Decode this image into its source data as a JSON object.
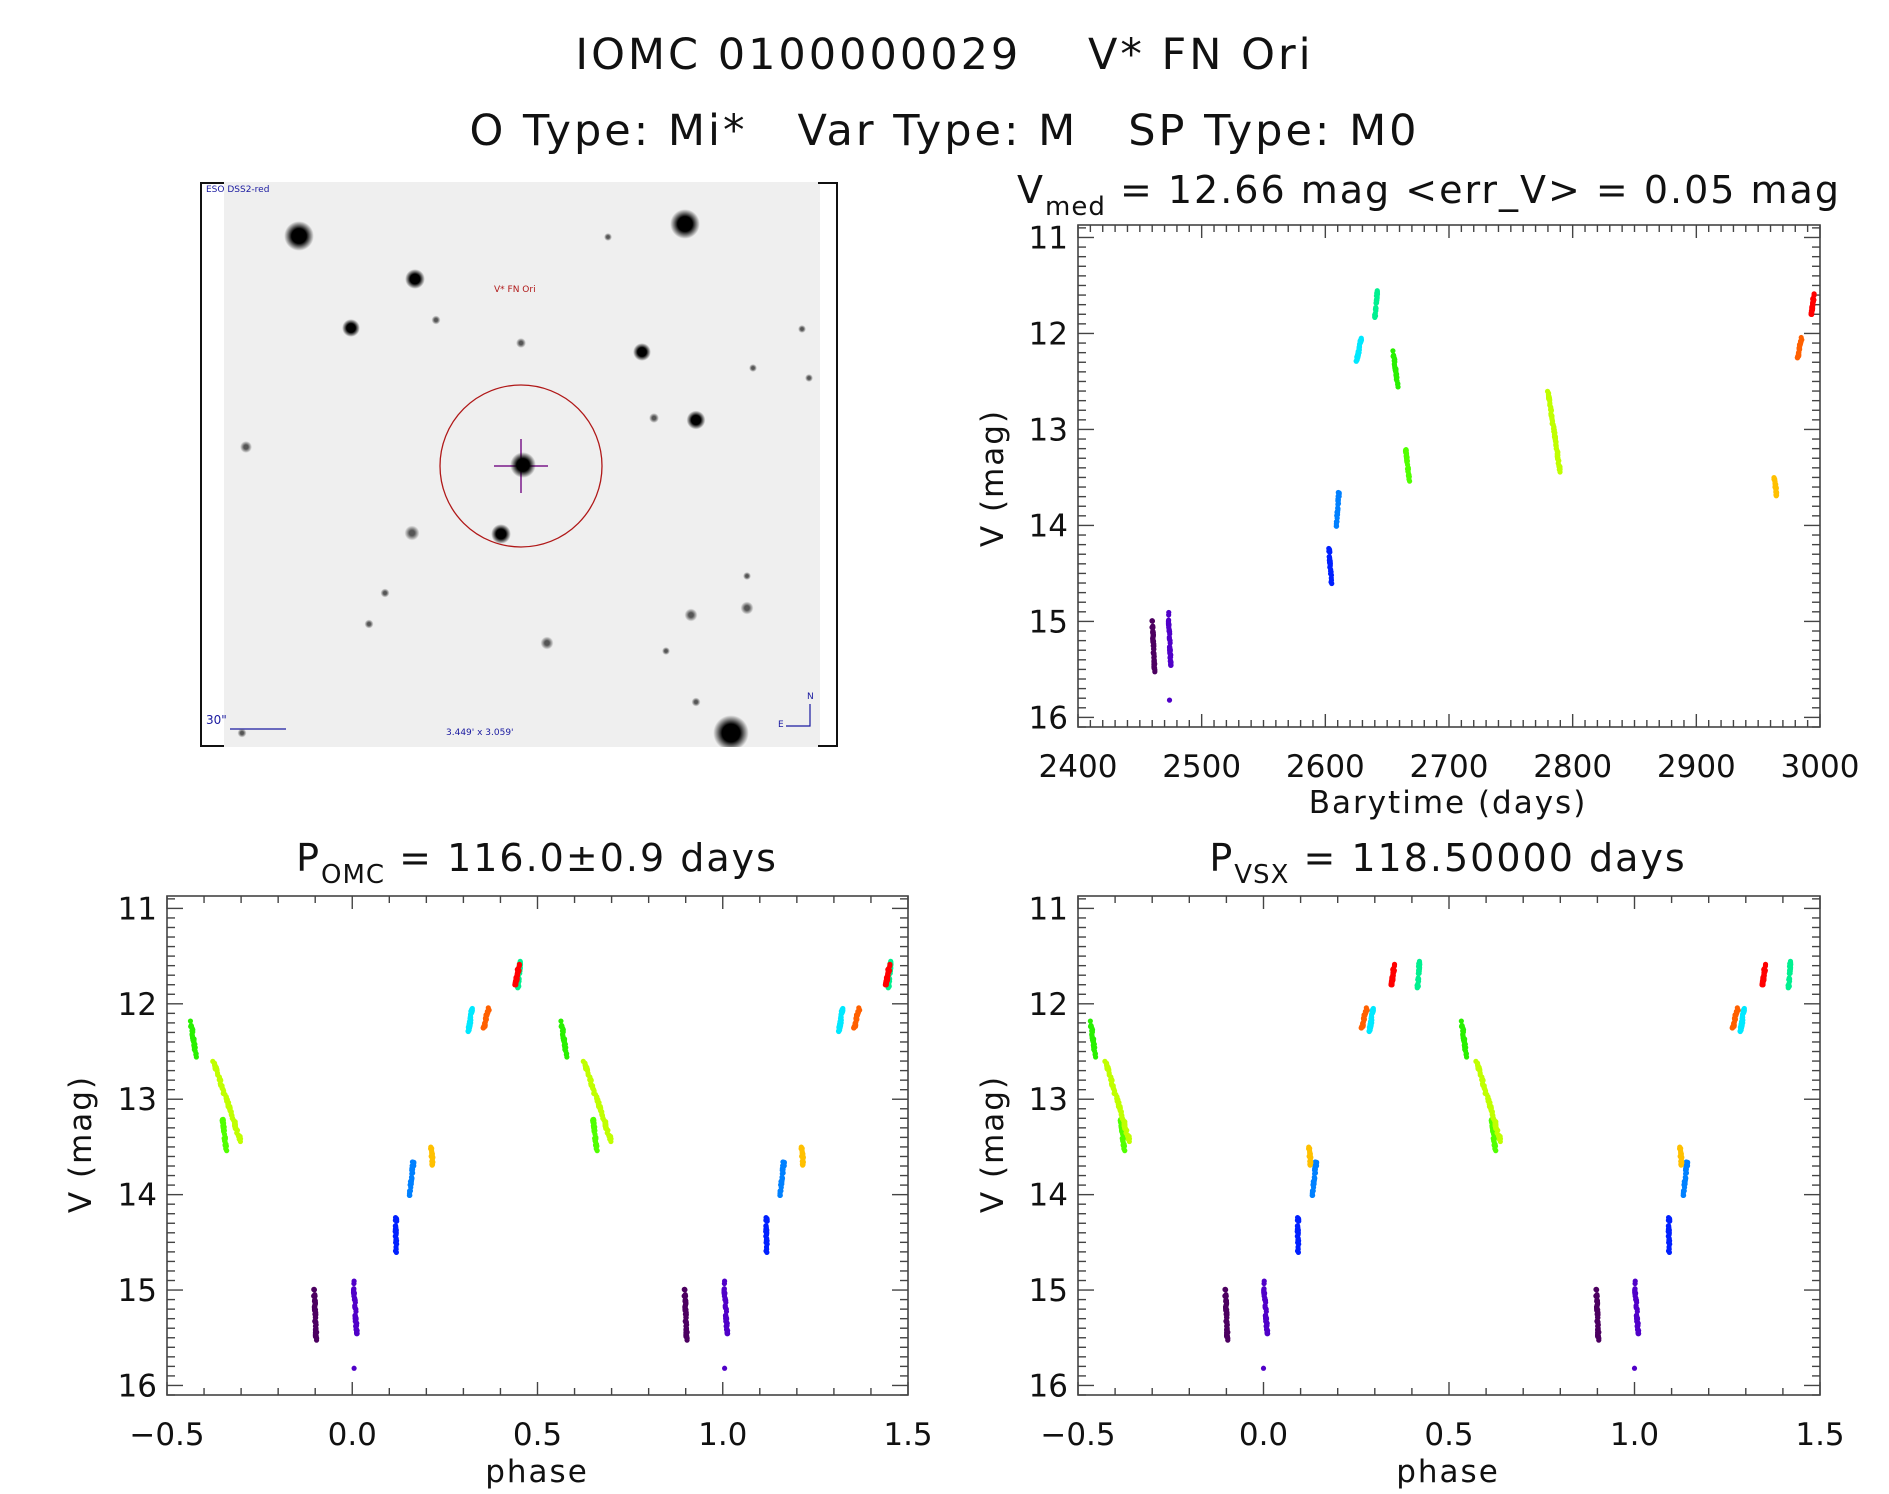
{
  "header": {
    "line1": "IOMC 0100000029    V* FN Ori",
    "line2": "O Type: Mi*   Var Type: M   SP Type: M0"
  },
  "finder_chart": {
    "survey": "ESO DSS2-red",
    "target_label": "V* FN Ori",
    "scale_label": "30\"",
    "field_size": "3.449' x 3.059'",
    "north": "N",
    "east": "E"
  },
  "chart_data": [
    {
      "id": "lightcurve",
      "type": "scatter",
      "title_main": "V",
      "title_sub": "med",
      "title_rest": " = 12.66 mag <err_V> = 0.05 mag",
      "xlabel": "Barytime (days)",
      "ylabel": "V (mag)",
      "xlim": [
        2400,
        3000
      ],
      "ylim": [
        10.87,
        16.1
      ],
      "y_inverted": true,
      "xticks": [
        2400,
        2500,
        2600,
        2700,
        2800,
        2900,
        3000
      ],
      "xtick_labels": [
        "2400",
        "2500",
        "2600",
        "2700",
        "2800",
        "2900",
        "3000"
      ],
      "x_minor": 10,
      "yticks": [
        11,
        12,
        13,
        14,
        15,
        16
      ],
      "ytick_labels": [
        "11",
        "12",
        "13",
        "14",
        "15",
        "16"
      ],
      "y_minor": 0.1
    },
    {
      "id": "phase_omc",
      "type": "scatter",
      "title_main": "P",
      "title_sub": "OMC",
      "title_rest": " = 116.0±0.9 days",
      "period_days": 116.0,
      "xlabel": "phase",
      "ylabel": "V (mag)",
      "xlim": [
        -0.5,
        1.5
      ],
      "ylim": [
        10.87,
        16.1
      ],
      "y_inverted": true,
      "xticks": [
        -0.5,
        0,
        0.5,
        1,
        1.5
      ],
      "xtick_labels": [
        "−0.5",
        "0.0",
        "0.5",
        "1.0",
        "1.5"
      ],
      "x_minor": 0.1,
      "yticks": [
        11,
        12,
        13,
        14,
        15,
        16
      ],
      "ytick_labels": [
        "11",
        "12",
        "13",
        "14",
        "15",
        "16"
      ],
      "y_minor": 0.1
    },
    {
      "id": "phase_vsx",
      "type": "scatter",
      "title_main": "P",
      "title_sub": "VSX",
      "title_rest": " = 118.50000 days",
      "period_days": 118.5,
      "xlabel": "phase",
      "ylabel": "V (mag)",
      "xlim": [
        -0.5,
        1.5
      ],
      "ylim": [
        10.87,
        16.1
      ],
      "y_inverted": true,
      "xticks": [
        -0.5,
        0,
        0.5,
        1,
        1.5
      ],
      "xtick_labels": [
        "−0.5",
        "0.0",
        "0.5",
        "1.0",
        "1.5"
      ],
      "x_minor": 0.1,
      "yticks": [
        11,
        12,
        13,
        14,
        15,
        16
      ],
      "ytick_labels": [
        "11",
        "12",
        "13",
        "14",
        "15",
        "16"
      ],
      "y_minor": 0.1
    }
  ],
  "segments": [
    {
      "t": [
        2460,
        2462
      ],
      "mag": [
        15.0,
        15.52
      ],
      "phase_omc": [
        0.897,
        0.903
      ],
      "phase_vsx": [
        0.897,
        0.903
      ],
      "color": "#4c0060",
      "n": 60
    },
    {
      "t": [
        2473,
        2475
      ],
      "mag": [
        14.92,
        15.45
      ],
      "phase_omc": [
        0.003,
        0.012
      ],
      "phase_vsx": [
        0.0,
        0.01
      ],
      "color": "#5000c8",
      "n": 50
    },
    {
      "t": [
        2474,
        2474
      ],
      "mag": [
        15.82,
        15.82
      ],
      "phase_omc": [
        0.005,
        0.005
      ],
      "phase_vsx": [
        0.0,
        0.0
      ],
      "color": "#5000c8",
      "n": 1
    },
    {
      "t": [
        2603,
        2605
      ],
      "mag": [
        14.25,
        14.6
      ],
      "phase_omc": [
        0.118,
        0.118
      ],
      "phase_vsx": [
        0.093,
        0.093
      ],
      "color": "#0020ff",
      "n": 30
    },
    {
      "t": [
        2609,
        2611
      ],
      "mag": [
        14.0,
        13.65
      ],
      "phase_omc": [
        0.155,
        0.165
      ],
      "phase_vsx": [
        0.132,
        0.142
      ],
      "color": "#0080ff",
      "n": 30
    },
    {
      "t": [
        2625,
        2629
      ],
      "mag": [
        12.3,
        12.05
      ],
      "phase_omc": [
        0.313,
        0.323
      ],
      "phase_vsx": [
        0.285,
        0.295
      ],
      "color": "#00e8ff",
      "n": 35
    },
    {
      "t": [
        2640,
        2642
      ],
      "mag": [
        11.85,
        11.55
      ],
      "phase_omc": [
        0.447,
        0.453
      ],
      "phase_vsx": [
        0.415,
        0.42
      ],
      "color": "#00f090",
      "n": 30
    },
    {
      "t": [
        2655,
        2659
      ],
      "mag": [
        12.2,
        12.58
      ],
      "phase_omc": [
        0.565,
        0.58
      ],
      "phase_vsx": [
        0.535,
        0.548
      ],
      "color": "#28f000",
      "n": 30
    },
    {
      "t": [
        2665,
        2668
      ],
      "mag": [
        13.2,
        13.55
      ],
      "phase_omc": [
        0.65,
        0.66
      ],
      "phase_vsx": [
        0.615,
        0.625
      ],
      "color": "#50ff00",
      "n": 35
    },
    {
      "t": [
        2780,
        2790
      ],
      "mag": [
        12.6,
        13.45
      ],
      "phase_omc": [
        0.625,
        0.7
      ],
      "phase_vsx": [
        0.574,
        0.64
      ],
      "color": "#c0ff00",
      "n": 90
    },
    {
      "t": [
        2963,
        2965
      ],
      "mag": [
        13.5,
        13.7
      ],
      "phase_omc": [
        0.213,
        0.217
      ],
      "phase_vsx": [
        0.123,
        0.127
      ],
      "color": "#ffc000",
      "n": 25
    },
    {
      "t": [
        2982,
        2985
      ],
      "mag": [
        12.25,
        12.05
      ],
      "phase_omc": [
        0.355,
        0.368
      ],
      "phase_vsx": [
        0.265,
        0.278
      ],
      "color": "#ff6000",
      "n": 30
    },
    {
      "t": [
        2993,
        2995
      ],
      "mag": [
        11.8,
        11.6
      ],
      "phase_omc": [
        0.44,
        0.45
      ],
      "phase_vsx": [
        0.345,
        0.352
      ],
      "color": "#ff0000",
      "n": 45
    }
  ]
}
